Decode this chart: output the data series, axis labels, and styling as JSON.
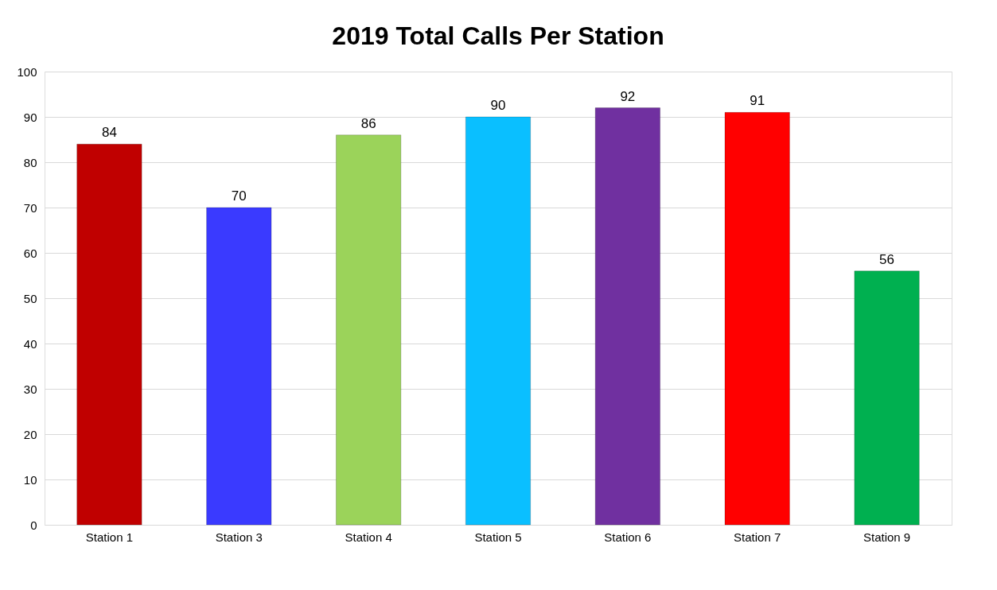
{
  "chart_data": {
    "type": "bar",
    "title": "2019 Total Calls Per Station",
    "categories": [
      "Station 1",
      "Station 3",
      "Station 4",
      "Station 5",
      "Station 6",
      "Station 7",
      "Station 9"
    ],
    "values": [
      84,
      70,
      86,
      90,
      92,
      91,
      56
    ],
    "colors": [
      "#c00000",
      "#3a3aff",
      "#9bd35a",
      "#0abfff",
      "#7030a0",
      "#ff0000",
      "#00b050"
    ],
    "ylim": [
      0,
      100
    ],
    "yticks": [
      0,
      10,
      20,
      30,
      40,
      50,
      60,
      70,
      80,
      90,
      100
    ],
    "grid": "y",
    "data_labels": true,
    "legend": false
  }
}
